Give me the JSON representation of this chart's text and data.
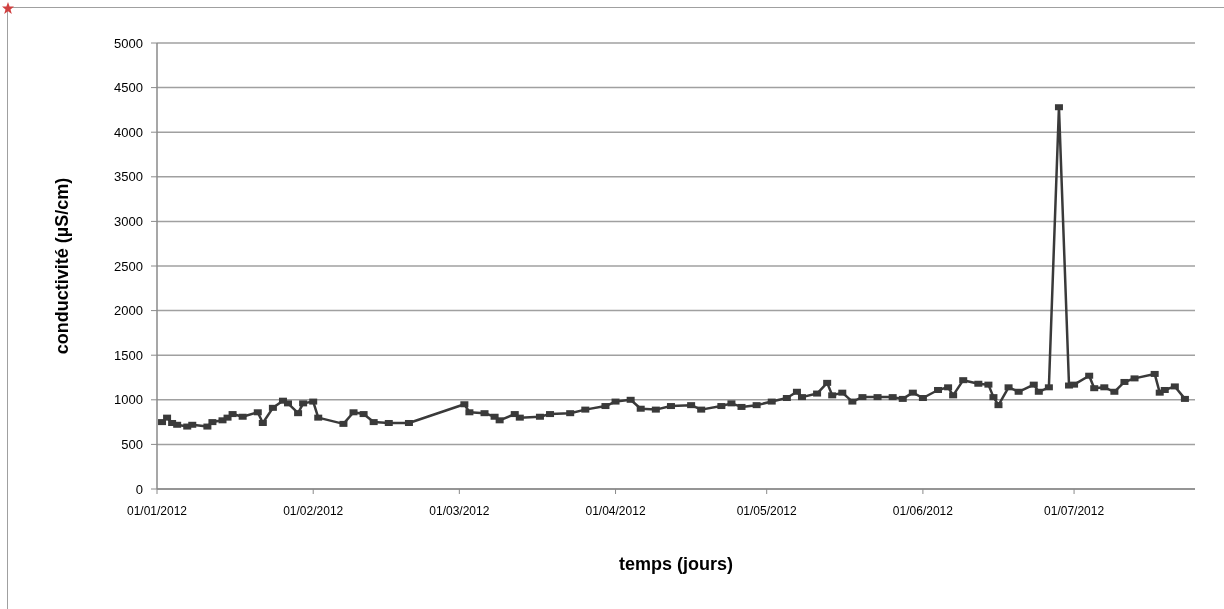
{
  "chart_data": {
    "type": "line",
    "xlabel": "temps (jours)",
    "ylabel": "conductivité (µS/cm)",
    "xlim": [
      "2012-01-01",
      "2012-07-25"
    ],
    "xticks": [
      {
        "value": "2012-01-01",
        "label": "01/01/2012"
      },
      {
        "value": "2012-02-01",
        "label": "01/02/2012"
      },
      {
        "value": "2012-03-01",
        "label": "01/03/2012"
      },
      {
        "value": "2012-04-01",
        "label": "01/04/2012"
      },
      {
        "value": "2012-05-01",
        "label": "01/05/2012"
      },
      {
        "value": "2012-06-01",
        "label": "01/06/2012"
      },
      {
        "value": "2012-07-01",
        "label": "01/07/2012"
      }
    ],
    "ylim": [
      0,
      5000
    ],
    "yticks": [
      0,
      500,
      1000,
      1500,
      2000,
      2500,
      3000,
      3500,
      4000,
      4500,
      5000
    ],
    "grid": "y",
    "marker": "square",
    "line_style": "solid",
    "x": [
      "2012-01-02",
      "2012-01-03",
      "2012-01-04",
      "2012-01-05",
      "2012-01-07",
      "2012-01-08",
      "2012-01-11",
      "2012-01-12",
      "2012-01-14",
      "2012-01-15",
      "2012-01-16",
      "2012-01-18",
      "2012-01-21",
      "2012-01-22",
      "2012-01-24",
      "2012-01-26",
      "2012-01-27",
      "2012-01-29",
      "2012-01-30",
      "2012-02-01",
      "2012-02-02",
      "2012-02-07",
      "2012-02-09",
      "2012-02-11",
      "2012-02-13",
      "2012-02-16",
      "2012-02-20",
      "2012-03-02",
      "2012-03-03",
      "2012-03-06",
      "2012-03-08",
      "2012-03-09",
      "2012-03-12",
      "2012-03-13",
      "2012-03-17",
      "2012-03-19",
      "2012-03-23",
      "2012-03-26",
      "2012-03-30",
      "2012-04-01",
      "2012-04-04",
      "2012-04-06",
      "2012-04-09",
      "2012-04-12",
      "2012-04-16",
      "2012-04-18",
      "2012-04-22",
      "2012-04-24",
      "2012-04-26",
      "2012-04-29",
      "2012-05-02",
      "2012-05-05",
      "2012-05-07",
      "2012-05-08",
      "2012-05-11",
      "2012-05-13",
      "2012-05-14",
      "2012-05-16",
      "2012-05-18",
      "2012-05-20",
      "2012-05-23",
      "2012-05-26",
      "2012-05-28",
      "2012-05-30",
      "2012-06-01",
      "2012-06-04",
      "2012-06-06",
      "2012-06-07",
      "2012-06-09",
      "2012-06-12",
      "2012-06-14",
      "2012-06-15",
      "2012-06-16",
      "2012-06-18",
      "2012-06-20",
      "2012-06-23",
      "2012-06-24",
      "2012-06-26",
      "2012-06-28",
      "2012-06-30",
      "2012-07-01",
      "2012-07-04",
      "2012-07-05",
      "2012-07-07",
      "2012-07-09",
      "2012-07-11",
      "2012-07-13",
      "2012-07-17",
      "2012-07-18",
      "2012-07-19",
      "2012-07-21",
      "2012-07-23"
    ],
    "series": [
      {
        "color": "#3a3a3a",
        "values": [
          750,
          800,
          740,
          720,
          700,
          720,
          700,
          750,
          770,
          800,
          840,
          810,
          860,
          740,
          910,
          990,
          960,
          850,
          960,
          980,
          800,
          730,
          860,
          840,
          750,
          740,
          740,
          950,
          860,
          850,
          810,
          770,
          840,
          800,
          810,
          840,
          850,
          890,
          930,
          980,
          1000,
          900,
          890,
          930,
          940,
          890,
          930,
          960,
          920,
          940,
          980,
          1020,
          1090,
          1030,
          1070,
          1190,
          1050,
          1080,
          980,
          1030,
          1030,
          1030,
          1010,
          1080,
          1020,
          1110,
          1140,
          1050,
          1220,
          1180,
          1170,
          1030,
          940,
          1140,
          1090,
          1170,
          1090,
          1140,
          4280,
          1160,
          1170,
          1270,
          1130,
          1140,
          1090,
          1200,
          1240,
          1290,
          1080,
          1110,
          1150,
          1010
        ]
      }
    ]
  }
}
